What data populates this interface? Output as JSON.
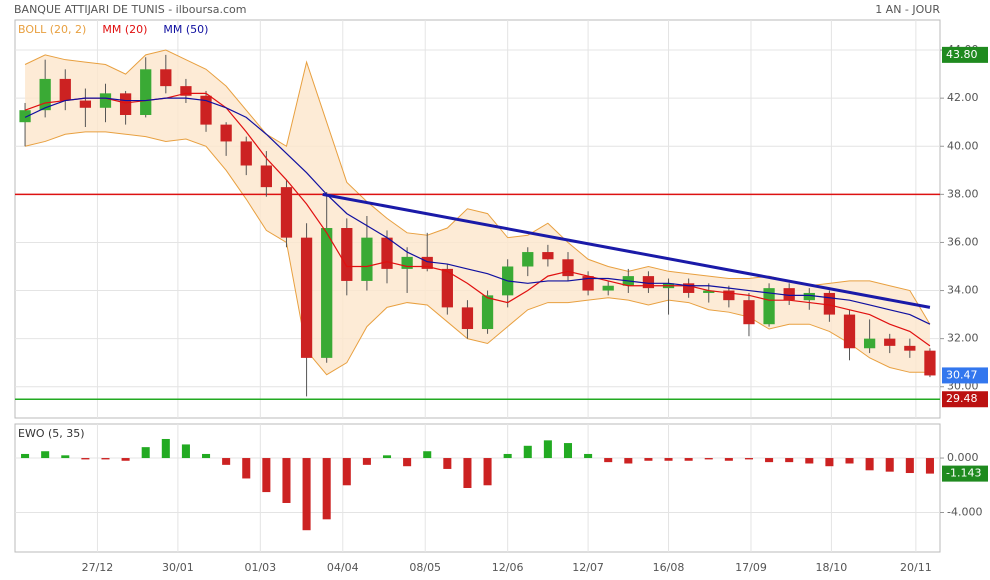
{
  "header": {
    "title": "BANQUE ATTIJARI DE TUNIS - ilboursa.com",
    "period": "1 AN - JOUR"
  },
  "chart_data": [
    {
      "type": "candlestick",
      "xlim": [
        -0.5,
        45.5
      ],
      "xticks": [
        {
          "value": 3.6,
          "label": "27/12"
        },
        {
          "value": 7.6,
          "label": "30/01"
        },
        {
          "value": 11.7,
          "label": "01/03"
        },
        {
          "value": 15.8,
          "label": "04/04"
        },
        {
          "value": 19.9,
          "label": "08/05"
        },
        {
          "value": 24,
          "label": "12/06"
        },
        {
          "value": 28,
          "label": "12/07"
        },
        {
          "value": 32,
          "label": "16/08"
        },
        {
          "value": 36.1,
          "label": "17/09"
        },
        {
          "value": 40.1,
          "label": "18/10"
        },
        {
          "value": 44.3,
          "label": "20/11"
        }
      ],
      "ylim": [
        28.7,
        45.25
      ],
      "yticks": [
        {
          "value": 30,
          "label": "30.00"
        },
        {
          "value": 32,
          "label": "32.00"
        },
        {
          "value": 34,
          "label": "34.00"
        },
        {
          "value": 36,
          "label": "36.00"
        },
        {
          "value": 38,
          "label": "38.00"
        },
        {
          "value": 40,
          "label": "40.00"
        },
        {
          "value": 42,
          "label": "42.00"
        },
        {
          "value": 44,
          "label": "44.00"
        }
      ],
      "grid": true,
      "up_color": "#3aaa35",
      "down_color": "#cc2222",
      "ohlc": {
        "open": [
          41.0,
          41.5,
          42.8,
          41.9,
          41.6,
          42.2,
          41.3,
          43.2,
          42.5,
          42.1,
          40.9,
          40.2,
          39.2,
          38.3,
          36.2,
          31.2,
          36.6,
          34.4,
          36.2,
          34.9,
          35.4,
          34.9,
          33.3,
          32.4,
          33.8,
          35.0,
          35.6,
          35.3,
          34.6,
          34.0,
          34.2,
          34.6,
          34.1,
          34.3,
          33.9,
          34.0,
          33.6,
          32.6,
          34.1,
          33.6,
          33.9,
          33.0,
          31.6,
          32.0,
          31.7,
          31.5
        ],
        "high": [
          41.8,
          43.6,
          43.2,
          42.4,
          42.6,
          42.3,
          43.7,
          43.8,
          42.8,
          42.3,
          41.0,
          40.4,
          39.8,
          38.6,
          36.8,
          38.1,
          37.0,
          37.1,
          36.5,
          35.8,
          36.4,
          35.1,
          33.6,
          34.0,
          35.3,
          35.8,
          35.9,
          35.6,
          34.8,
          34.4,
          34.9,
          34.8,
          34.5,
          34.5,
          34.3,
          34.2,
          33.9,
          34.3,
          34.3,
          34.1,
          34.0,
          33.2,
          32.8,
          32.2,
          32.0,
          31.6
        ],
        "low": [
          40.0,
          41.2,
          41.5,
          40.8,
          41.0,
          40.9,
          41.2,
          42.2,
          41.8,
          40.6,
          39.6,
          38.8,
          37.9,
          35.8,
          29.6,
          31.0,
          33.8,
          34.0,
          34.3,
          33.9,
          34.8,
          33.0,
          32.0,
          32.2,
          33.3,
          34.6,
          35.0,
          34.4,
          33.8,
          33.8,
          33.9,
          33.9,
          33.0,
          33.7,
          33.5,
          33.3,
          32.1,
          32.5,
          33.4,
          33.2,
          32.7,
          31.1,
          31.4,
          31.4,
          31.2,
          30.4
        ],
        "close": [
          41.5,
          42.8,
          41.9,
          41.6,
          42.2,
          41.3,
          43.2,
          42.5,
          42.1,
          40.9,
          40.2,
          39.2,
          38.3,
          36.2,
          31.2,
          36.6,
          34.4,
          36.2,
          34.9,
          35.4,
          34.9,
          33.3,
          32.4,
          33.8,
          35.0,
          35.6,
          35.3,
          34.6,
          34.0,
          34.2,
          34.6,
          34.1,
          34.3,
          33.9,
          34.0,
          33.6,
          32.6,
          34.1,
          33.6,
          33.9,
          33.0,
          31.6,
          32.0,
          31.7,
          31.5,
          30.47
        ]
      },
      "series": [
        {
          "name": "BOLL (20, 2)",
          "color": "#e8a040",
          "fill": "#fde6cc",
          "upper": [
            43.4,
            43.8,
            43.6,
            43.5,
            43.4,
            43.0,
            43.8,
            44.0,
            43.6,
            43.2,
            42.5,
            41.5,
            40.5,
            40.0,
            43.5,
            41.0,
            38.5,
            37.7,
            37.0,
            36.4,
            36.3,
            36.6,
            37.4,
            37.2,
            36.2,
            36.3,
            36.8,
            36.0,
            35.3,
            35.0,
            34.8,
            35.0,
            34.8,
            34.7,
            34.6,
            34.5,
            34.5,
            34.6,
            34.4,
            34.2,
            34.3,
            34.4,
            34.4,
            34.2,
            34.0,
            32.6
          ],
          "lower": [
            40.0,
            40.2,
            40.5,
            40.6,
            40.6,
            40.5,
            40.4,
            40.2,
            40.3,
            40.0,
            39.0,
            37.8,
            36.5,
            36.0,
            31.5,
            30.5,
            31.0,
            32.5,
            33.3,
            33.5,
            33.4,
            32.7,
            32.0,
            31.8,
            32.5,
            33.2,
            33.5,
            33.5,
            33.6,
            33.7,
            33.6,
            33.4,
            33.6,
            33.5,
            33.2,
            33.1,
            32.9,
            32.4,
            32.6,
            32.6,
            32.3,
            31.8,
            31.2,
            30.8,
            30.6,
            30.6
          ]
        },
        {
          "name": "MM (20)",
          "color": "#e01010",
          "values": [
            41.5,
            41.8,
            41.9,
            42.0,
            42.0,
            41.8,
            41.9,
            42.0,
            42.2,
            42.2,
            41.6,
            40.6,
            39.5,
            38.6,
            37.6,
            36.4,
            35.0,
            35.0,
            35.2,
            35.0,
            35.0,
            34.8,
            34.3,
            33.7,
            33.5,
            34.0,
            34.6,
            34.8,
            34.6,
            34.4,
            34.2,
            34.2,
            34.2,
            34.2,
            34.0,
            33.9,
            33.8,
            33.6,
            33.6,
            33.5,
            33.4,
            33.2,
            33.0,
            32.6,
            32.3,
            31.7
          ]
        },
        {
          "name": "MM (50)",
          "color": "#1010a0",
          "values": [
            41.2,
            41.6,
            41.9,
            42.0,
            42.0,
            41.9,
            41.9,
            42.0,
            42.0,
            41.9,
            41.6,
            41.2,
            40.5,
            39.7,
            38.9,
            38.0,
            37.2,
            36.7,
            36.2,
            35.6,
            35.2,
            35.1,
            34.9,
            34.7,
            34.4,
            34.3,
            34.4,
            34.4,
            34.5,
            34.5,
            34.4,
            34.3,
            34.3,
            34.2,
            34.2,
            34.1,
            34.0,
            33.9,
            33.8,
            33.8,
            33.7,
            33.6,
            33.4,
            33.2,
            33.0,
            32.6
          ]
        }
      ],
      "hlines": [
        {
          "value": 38,
          "color": "#dd1111"
        },
        {
          "value": 29.48,
          "color": "#22aa22"
        }
      ],
      "trendline": {
        "x": [
          14.8,
          45
        ],
        "y": [
          38.0,
          33.3
        ],
        "color": "#1a1aa8"
      },
      "price_labels": [
        {
          "value": 43.8,
          "label": "43.80",
          "color": "#1f8a1f"
        },
        {
          "value": 30.47,
          "label": "30.47",
          "color": "#3377ee"
        },
        {
          "value": 29.48,
          "label": "29.48",
          "color": "#bb1111"
        }
      ]
    },
    {
      "type": "histogram",
      "series": [
        {
          "name": "EWO (5, 35)",
          "color": "#22aa22",
          "down_color": "#cc2222",
          "values": [
            0.3,
            0.5,
            0.2,
            -0.1,
            -0.1,
            -0.2,
            0.8,
            1.4,
            1.0,
            0.3,
            -0.5,
            -1.5,
            -2.5,
            -3.3,
            -5.3,
            -4.5,
            -2.0,
            -0.5,
            0.2,
            -0.6,
            0.5,
            -0.8,
            -2.2,
            -2.0,
            0.3,
            0.9,
            1.3,
            1.1,
            0.3,
            -0.3,
            -0.4,
            -0.2,
            -0.2,
            -0.2,
            -0.1,
            -0.2,
            -0.1,
            -0.3,
            -0.3,
            -0.4,
            -0.6,
            -0.4,
            -0.9,
            -1.0,
            -1.1,
            -1.143
          ]
        }
      ],
      "ylim": [
        -6.9,
        2.5
      ],
      "yticks": [
        {
          "value": 0,
          "label": "0.000"
        },
        {
          "value": -4,
          "label": "-4.000"
        }
      ],
      "last_label": {
        "value": -1.143,
        "label": "-1.143",
        "color": "#1f8a1f"
      }
    }
  ]
}
